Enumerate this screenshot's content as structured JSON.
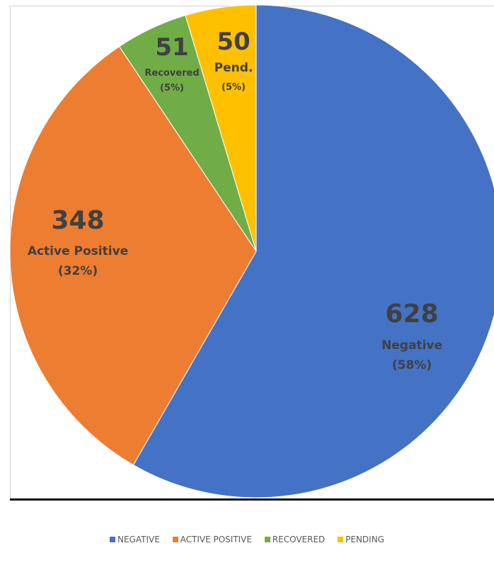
{
  "chart_data": {
    "type": "pie",
    "categories": [
      "NEGATIVE",
      "ACTIVE POSITIVE",
      "RECOVERED",
      "PENDING"
    ],
    "values": [
      628,
      348,
      51,
      50
    ],
    "colors": [
      "#4472C4",
      "#ED7D31",
      "#70AD47",
      "#FFC000"
    ],
    "slice_labels": [
      {
        "value": "628",
        "name": "Negative",
        "percent": "(58%)"
      },
      {
        "value": "348",
        "name": "Active Positive",
        "percent": "(32%)"
      },
      {
        "value": "51",
        "name": "Recovered",
        "percent": "(5%)"
      },
      {
        "value": "50",
        "name": "Pend.",
        "percent": "(5%)"
      }
    ],
    "legend_position": "bottom"
  }
}
